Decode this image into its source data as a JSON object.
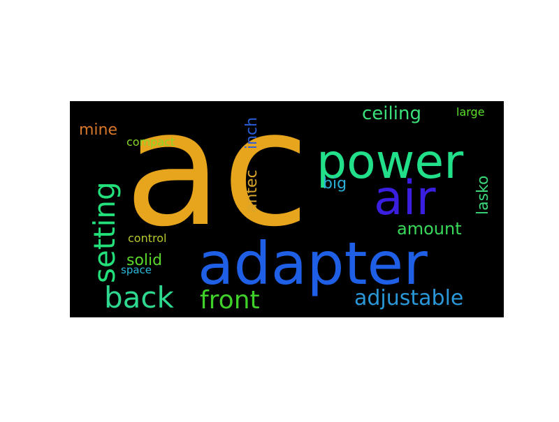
{
  "background_color": "#000000",
  "words": [
    {
      "id": "ac",
      "text": "ac",
      "color": "#e6a51c"
    },
    {
      "id": "adapter",
      "text": "adapter",
      "color": "#1f5fe6"
    },
    {
      "id": "power",
      "text": "power",
      "color": "#22e08a"
    },
    {
      "id": "air",
      "text": "air",
      "color": "#3b1fe0"
    },
    {
      "id": "setting",
      "text": "setting",
      "color": "#22e07a"
    },
    {
      "id": "back",
      "text": "back",
      "color": "#2ed88f"
    },
    {
      "id": "front",
      "text": "front",
      "color": "#3fd02a"
    },
    {
      "id": "adjustable",
      "text": "adjustable",
      "color": "#2a98d8"
    },
    {
      "id": "ceiling",
      "text": "ceiling",
      "color": "#3ae07a"
    },
    {
      "id": "amount",
      "text": "amount",
      "color": "#38d85a"
    },
    {
      "id": "mine",
      "text": "mine",
      "color": "#d8772a"
    },
    {
      "id": "inch",
      "text": "inch",
      "color": "#2a5ed8"
    },
    {
      "id": "antec",
      "text": "antec",
      "color": "#d8a42a"
    },
    {
      "id": "big",
      "text": "big",
      "color": "#2ab0d8"
    },
    {
      "id": "lasko",
      "text": "lasko",
      "color": "#3ad87a"
    },
    {
      "id": "solid",
      "text": "solid",
      "color": "#5ad82a"
    },
    {
      "id": "compact",
      "text": "compact",
      "color": "#8ad82a"
    },
    {
      "id": "control",
      "text": "control",
      "color": "#b8c82a"
    },
    {
      "id": "space",
      "text": "space",
      "color": "#2ab8d8"
    },
    {
      "id": "large",
      "text": "large",
      "color": "#5ae02a"
    }
  ]
}
